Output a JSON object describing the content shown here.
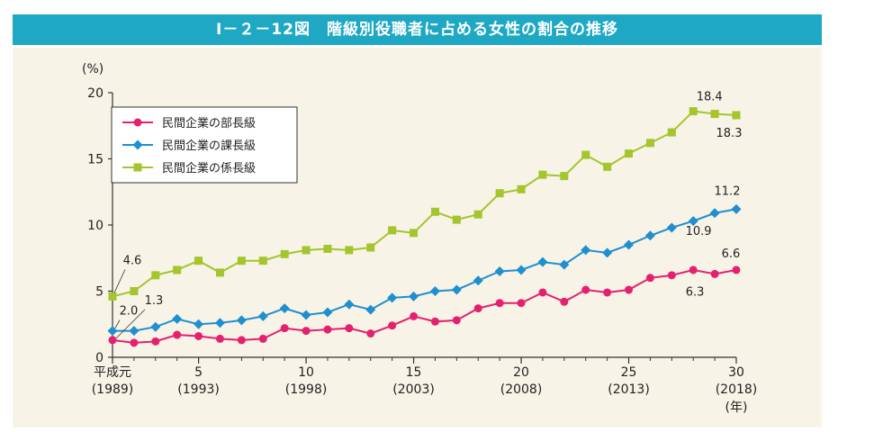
{
  "title": "Ⅰ－２－12図　階級別役職者に占める女性の割合の推移",
  "chart_data": {
    "type": "line",
    "y_unit": "(%)",
    "ylim": [
      0,
      20
    ],
    "yticks": [
      0,
      5,
      10,
      15,
      20
    ],
    "xlim": [
      1,
      30
    ],
    "x_ticks": [
      {
        "x": 1,
        "era": "平成元",
        "year": "(1989)"
      },
      {
        "x": 5,
        "era": "5",
        "year": "(1993)"
      },
      {
        "x": 10,
        "era": "10",
        "year": "(1998)"
      },
      {
        "x": 15,
        "era": "15",
        "year": "(2003)"
      },
      {
        "x": 20,
        "era": "20",
        "year": "(2008)"
      },
      {
        "x": 25,
        "era": "25",
        "year": "(2013)"
      },
      {
        "x": 30,
        "era": "30",
        "year": "(2018)"
      }
    ],
    "x_unit": "(年)",
    "grid": false,
    "legend_position": "top-left",
    "x": [
      1,
      2,
      3,
      4,
      5,
      6,
      7,
      8,
      9,
      10,
      11,
      12,
      13,
      14,
      15,
      16,
      17,
      18,
      19,
      20,
      21,
      22,
      23,
      24,
      25,
      26,
      27,
      28,
      29,
      30
    ],
    "series": [
      {
        "name": "民間企業の部長級",
        "color": "#e5206f",
        "marker": "circle",
        "values": [
          1.3,
          1.1,
          1.2,
          1.7,
          1.6,
          1.4,
          1.3,
          1.4,
          2.2,
          2.0,
          2.1,
          2.2,
          1.8,
          2.4,
          3.1,
          2.7,
          2.8,
          3.7,
          4.1,
          4.1,
          4.9,
          4.2,
          5.1,
          4.9,
          5.1,
          6.0,
          6.2,
          6.6,
          6.3,
          6.6
        ]
      },
      {
        "name": "民間企業の課長級",
        "color": "#1f8fd0",
        "marker": "diamond",
        "values": [
          2.0,
          2.0,
          2.3,
          2.9,
          2.5,
          2.6,
          2.8,
          3.1,
          3.7,
          3.2,
          3.4,
          4.0,
          3.6,
          4.5,
          4.6,
          5.0,
          5.1,
          5.8,
          6.5,
          6.6,
          7.2,
          7.0,
          8.1,
          7.9,
          8.5,
          9.2,
          9.8,
          10.3,
          10.9,
          11.2
        ]
      },
      {
        "name": "民間企業の係長級",
        "color": "#a5c42d",
        "marker": "square",
        "values": [
          4.6,
          5.0,
          6.2,
          6.6,
          7.3,
          6.4,
          7.3,
          7.3,
          7.8,
          8.1,
          8.2,
          8.1,
          8.3,
          9.6,
          9.4,
          11.0,
          10.4,
          10.8,
          12.4,
          12.7,
          13.8,
          13.7,
          15.3,
          14.4,
          15.4,
          16.2,
          17.0,
          18.6,
          18.4,
          18.3
        ]
      }
    ],
    "annotations": [
      "4.6",
      "2.0",
      "1.3",
      "18.4",
      "18.3",
      "11.2",
      "10.9",
      "6.6",
      "6.3"
    ]
  }
}
